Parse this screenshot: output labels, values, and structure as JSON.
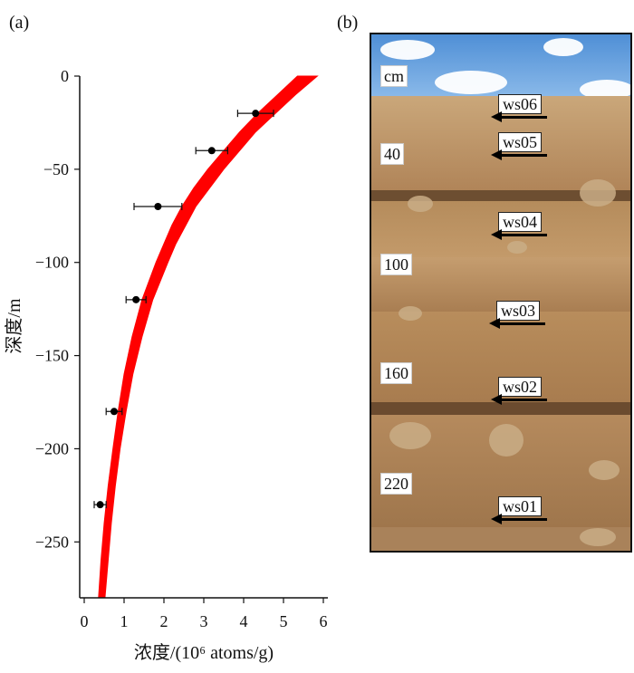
{
  "panel_a": {
    "label": "(a)"
  },
  "panel_b": {
    "label": "(b)"
  },
  "chart_data": {
    "type": "scatter",
    "xlabel": "浓度/(10⁶ atoms/g)",
    "ylabel": "深度/m",
    "xlim": [
      0,
      6
    ],
    "ylim": [
      -280,
      0
    ],
    "xticks": [
      0,
      1,
      2,
      3,
      4,
      5,
      6
    ],
    "yticks": [
      0,
      -50,
      -100,
      -150,
      -200,
      -250
    ],
    "series": [
      {
        "kind": "points",
        "color": "#000000",
        "points": [
          {
            "x": 4.3,
            "y": -20,
            "xerr": 0.45
          },
          {
            "x": 3.2,
            "y": -40,
            "xerr": 0.4
          },
          {
            "x": 1.85,
            "y": -70,
            "xerr": 0.6
          },
          {
            "x": 1.3,
            "y": -120,
            "xerr": 0.25
          },
          {
            "x": 0.75,
            "y": -180,
            "xerr": 0.2
          },
          {
            "x": 0.4,
            "y": -230,
            "xerr": 0.15
          }
        ]
      },
      {
        "kind": "fit-band",
        "color": "#ff0000",
        "points": [
          {
            "y": 0,
            "x_low": 5.35,
            "x_high": 5.85
          },
          {
            "y": -10,
            "x_low": 4.85,
            "x_high": 5.3
          },
          {
            "y": -20,
            "x_low": 4.35,
            "x_high": 4.8
          },
          {
            "y": -30,
            "x_low": 3.9,
            "x_high": 4.3
          },
          {
            "y": -40,
            "x_low": 3.5,
            "x_high": 3.9
          },
          {
            "y": -50,
            "x_low": 3.1,
            "x_high": 3.5
          },
          {
            "y": -60,
            "x_low": 2.75,
            "x_high": 3.15
          },
          {
            "y": -70,
            "x_low": 2.45,
            "x_high": 2.8
          },
          {
            "y": -80,
            "x_low": 2.2,
            "x_high": 2.55
          },
          {
            "y": -90,
            "x_low": 2.0,
            "x_high": 2.3
          },
          {
            "y": -100,
            "x_low": 1.8,
            "x_high": 2.1
          },
          {
            "y": -120,
            "x_low": 1.45,
            "x_high": 1.72
          },
          {
            "y": -140,
            "x_low": 1.2,
            "x_high": 1.45
          },
          {
            "y": -160,
            "x_low": 1.0,
            "x_high": 1.22
          },
          {
            "y": -180,
            "x_low": 0.85,
            "x_high": 1.05
          },
          {
            "y": -200,
            "x_low": 0.72,
            "x_high": 0.9
          },
          {
            "y": -220,
            "x_low": 0.6,
            "x_high": 0.78
          },
          {
            "y": -240,
            "x_low": 0.5,
            "x_high": 0.68
          },
          {
            "y": -260,
            "x_low": 0.42,
            "x_high": 0.6
          },
          {
            "y": -280,
            "x_low": 0.36,
            "x_high": 0.52
          }
        ]
      }
    ]
  },
  "photo": {
    "unit_label": "cm",
    "samples": [
      "ws06",
      "ws05",
      "ws04",
      "ws03",
      "ws02",
      "ws01"
    ],
    "depth_labels": [
      "40",
      "100",
      "160",
      "220"
    ],
    "colors": {
      "sky": "#5b97d8",
      "sediment": "#b98e5c",
      "dark_band": "#7a5a3a"
    }
  }
}
